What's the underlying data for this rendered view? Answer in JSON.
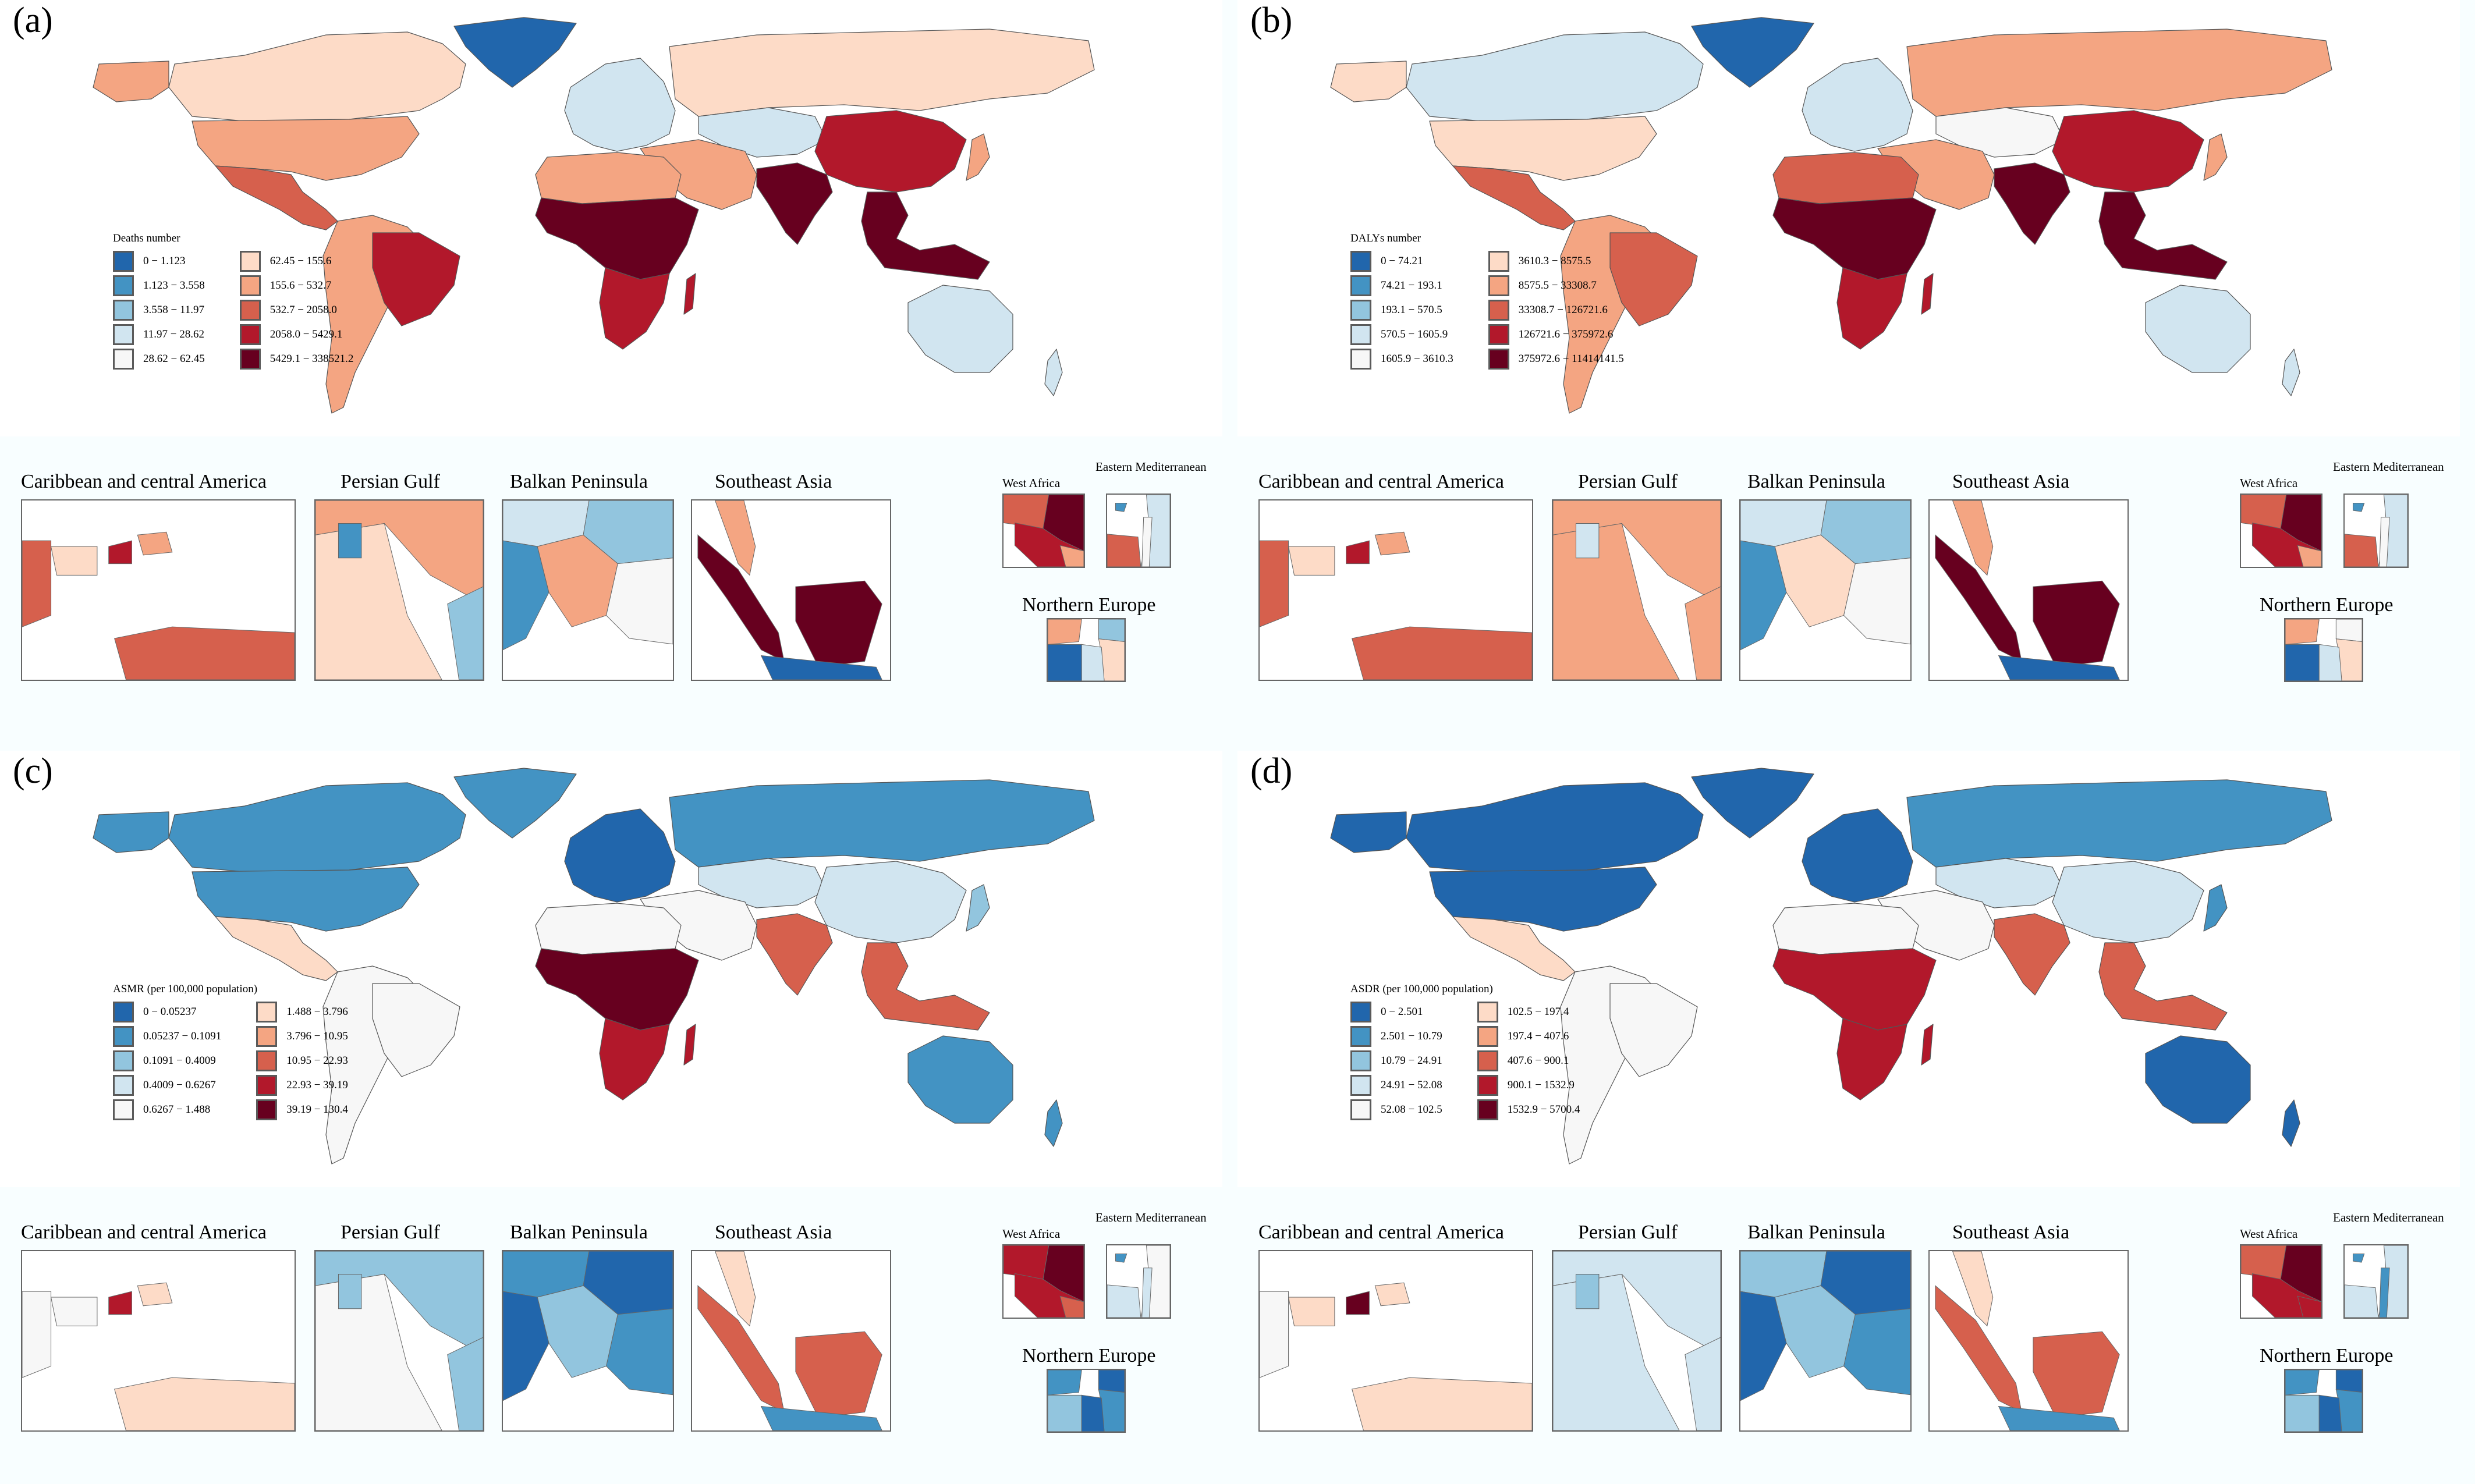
{
  "figure": {
    "palette": [
      "#2166ac",
      "#4393c3",
      "#92c5de",
      "#d1e5f0",
      "#f7f7f7",
      "#fddbc7",
      "#f4a582",
      "#d6604d",
      "#b2182b",
      "#67001f"
    ],
    "insets": [
      "Caribbean and central America",
      "Persian Gulf",
      "Balkan Peninsula",
      "Southeast Asia",
      "West Africa",
      "Eastern Mediterranean",
      "Northern Europe"
    ]
  },
  "chart_data": [
    {
      "type": "choropleth",
      "panel_label": "(a)",
      "legend_title": "Deaths number",
      "legend_placement": "bottom-left",
      "classes": [
        "0 − 1.123",
        "1.123 − 3.558",
        "3.558 − 11.97",
        "11.97 − 28.62",
        "28.62 − 62.45",
        "62.45 − 155.6",
        "155.6 − 532.7",
        "532.7 − 2058.0",
        "2058.0 − 5429.1",
        "5429.1 − 338521.2"
      ],
      "regions": {
        "north_america": 6,
        "canada": 5,
        "greenland": 0,
        "mexico_central": 7,
        "south_america": 6,
        "brazil": 8,
        "europe": 3,
        "russia": 5,
        "central_asia": 3,
        "middle_east": 6,
        "north_africa": 6,
        "sub_saharan_africa": 9,
        "southern_africa": 8,
        "south_asia": 9,
        "china": 8,
        "southeast_asia": 9,
        "japan": 6,
        "australia": 3,
        "new_zealand": 3
      },
      "insets": {
        "caribbean": [
          7,
          5,
          8,
          6,
          7
        ],
        "persian_gulf": [
          6,
          5,
          1,
          2
        ],
        "balkan": [
          3,
          2,
          6,
          4,
          1
        ],
        "southeast_asia": [
          9,
          6,
          9,
          0
        ],
        "west_africa": [
          7,
          9,
          8,
          6
        ],
        "eastern_med": [
          7,
          3,
          4,
          1
        ],
        "northern_europe": [
          2,
          5,
          6,
          0,
          3
        ]
      }
    },
    {
      "type": "choropleth",
      "panel_label": "(b)",
      "legend_title": "DALYs number",
      "legend_placement": "bottom-left",
      "classes": [
        "0 − 74.21",
        "74.21 − 193.1",
        "193.1 − 570.5",
        "570.5 − 1605.9",
        "1605.9 − 3610.3",
        "3610.3 − 8575.5",
        "8575.5 − 33308.7",
        "33308.7 − 126721.6",
        "126721.6 − 375972.6",
        "375972.6 − 11414141.5"
      ],
      "regions": {
        "north_america": 5,
        "canada": 3,
        "greenland": 0,
        "mexico_central": 7,
        "south_america": 6,
        "brazil": 7,
        "europe": 3,
        "russia": 6,
        "central_asia": 4,
        "middle_east": 6,
        "north_africa": 7,
        "sub_saharan_africa": 9,
        "southern_africa": 8,
        "south_asia": 9,
        "china": 8,
        "southeast_asia": 9,
        "japan": 6,
        "australia": 3,
        "new_zealand": 3
      },
      "insets": {
        "caribbean": [
          7,
          5,
          8,
          6,
          7
        ],
        "persian_gulf": [
          6,
          6,
          3,
          6
        ],
        "balkan": [
          3,
          2,
          5,
          4,
          1
        ],
        "southeast_asia": [
          9,
          6,
          9,
          0
        ],
        "west_africa": [
          7,
          9,
          8,
          6
        ],
        "eastern_med": [
          7,
          3,
          4,
          1
        ],
        "northern_europe": [
          4,
          5,
          6,
          0,
          3
        ]
      }
    },
    {
      "type": "choropleth",
      "panel_label": "(c)",
      "legend_title": "ASMR (per 100,000 population)",
      "legend_placement": "bottom-left",
      "classes": [
        "0 − 0.05237",
        "0.05237 − 0.1091",
        "0.1091 − 0.4009",
        "0.4009 − 0.6267",
        "0.6267 − 1.488",
        "1.488 − 3.796",
        "3.796 − 10.95",
        "10.95 − 22.93",
        "22.93 − 39.19",
        "39.19 − 130.4"
      ],
      "regions": {
        "north_america": 1,
        "canada": 1,
        "greenland": 1,
        "mexico_central": 5,
        "south_america": 4,
        "brazil": 4,
        "europe": 0,
        "russia": 1,
        "central_asia": 3,
        "middle_east": 4,
        "north_africa": 4,
        "sub_saharan_africa": 9,
        "southern_africa": 8,
        "south_asia": 7,
        "china": 3,
        "southeast_asia": 7,
        "japan": 2,
        "australia": 1,
        "new_zealand": 1
      },
      "insets": {
        "caribbean": [
          4,
          4,
          8,
          5,
          5
        ],
        "persian_gulf": [
          2,
          4,
          2,
          2
        ],
        "balkan": [
          1,
          0,
          2,
          1,
          0
        ],
        "southeast_asia": [
          7,
          5,
          7,
          1
        ],
        "west_africa": [
          8,
          9,
          8,
          7
        ],
        "eastern_med": [
          3,
          4,
          3,
          1
        ],
        "northern_europe": [
          0,
          1,
          1,
          2,
          0
        ]
      }
    },
    {
      "type": "choropleth",
      "panel_label": "(d)",
      "legend_title": "ASDR (per 100,000 population)",
      "legend_placement": "bottom-left",
      "classes": [
        "0 − 2.501",
        "2.501 − 10.79",
        "10.79 − 24.91",
        "24.91 − 52.08",
        "52.08 − 102.5",
        "102.5 − 197.4",
        "197.4 − 407.6",
        "407.6 − 900.1",
        "900.1 − 1532.9",
        "1532.9 − 5700.4"
      ],
      "regions": {
        "north_america": 0,
        "canada": 0,
        "greenland": 0,
        "mexico_central": 5,
        "south_america": 4,
        "brazil": 4,
        "europe": 0,
        "russia": 1,
        "central_asia": 3,
        "middle_east": 4,
        "north_africa": 4,
        "sub_saharan_africa": 8,
        "southern_africa": 8,
        "south_asia": 7,
        "china": 3,
        "southeast_asia": 7,
        "japan": 1,
        "australia": 0,
        "new_zealand": 0
      },
      "insets": {
        "caribbean": [
          4,
          5,
          9,
          5,
          5
        ],
        "persian_gulf": [
          3,
          3,
          2,
          3
        ],
        "balkan": [
          2,
          0,
          2,
          1,
          0
        ],
        "southeast_asia": [
          7,
          5,
          7,
          1
        ],
        "west_africa": [
          7,
          9,
          8,
          8
        ],
        "eastern_med": [
          3,
          3,
          1,
          1
        ],
        "northern_europe": [
          0,
          1,
          1,
          2,
          0
        ]
      }
    }
  ]
}
